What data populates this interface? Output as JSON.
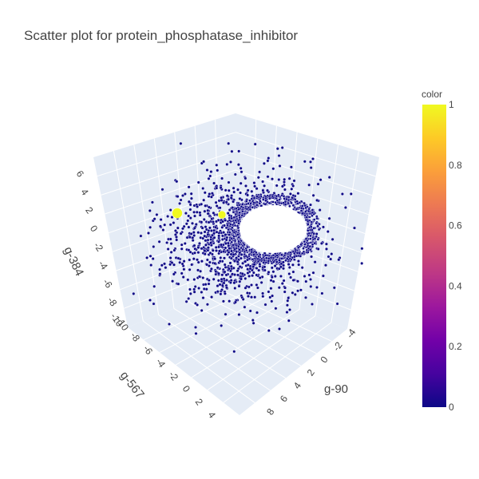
{
  "chart_data": {
    "type": "scatter3d",
    "title": "Scatter plot for protein_phosphatase_inhibitor",
    "axes": {
      "x": {
        "label": "g-90",
        "ticks": [
          "-4",
          "-2",
          "0",
          "2",
          "4",
          "6",
          "8"
        ]
      },
      "y": {
        "label": "g-567",
        "ticks": [
          "-10",
          "-8",
          "-6",
          "-4",
          "-2",
          "0",
          "2",
          "4"
        ]
      },
      "z": {
        "label": "g-384",
        "ticks": [
          "-10",
          "-8",
          "-6",
          "-4",
          "-2",
          "0",
          "2",
          "4",
          "6"
        ]
      }
    },
    "colorbar": {
      "title": "color",
      "range": [
        0,
        1
      ],
      "ticks": [
        "0",
        "0.2",
        "0.4",
        "0.6",
        "0.8",
        "1"
      ],
      "colorscale": [
        "#0d0887",
        "#46039f",
        "#7201a8",
        "#9c179e",
        "#bd3786",
        "#d8576b",
        "#ed7953",
        "#fb9f3a",
        "#fdca26",
        "#f0f921"
      ]
    },
    "series": [
      {
        "color_value": 0,
        "approx_count": 2500,
        "marker_color": "#0d0887"
      },
      {
        "color_value": 1,
        "count": 2,
        "marker_color": "#f0f921"
      }
    ]
  }
}
